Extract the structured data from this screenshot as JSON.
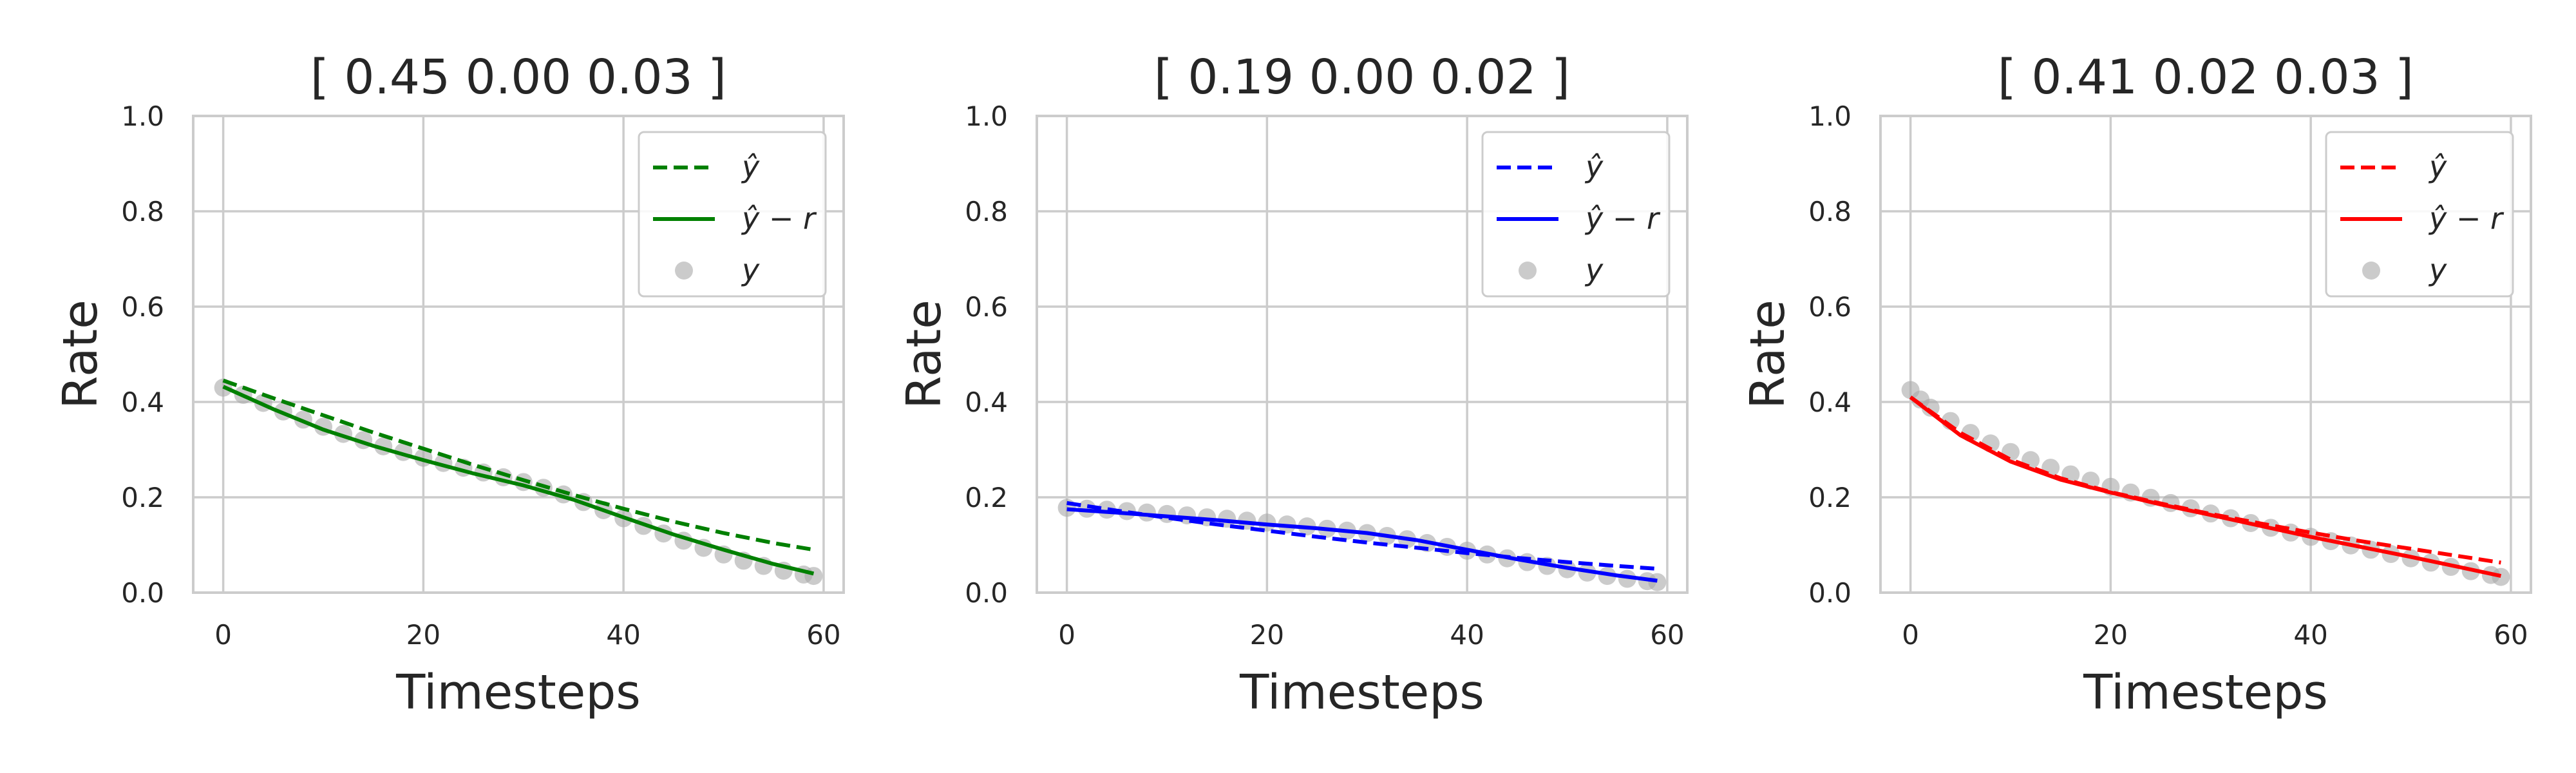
{
  "chart_data": [
    {
      "type": "line",
      "title": "[ 0.45 0.00 0.03 ]",
      "xlabel": "Timesteps",
      "ylabel": "Rate",
      "xlim": [
        -3,
        62
      ],
      "ylim": [
        0,
        1
      ],
      "xticks": [
        0,
        20,
        40,
        60
      ],
      "yticks": [
        0.0,
        0.2,
        0.4,
        0.6,
        0.8,
        1.0
      ],
      "grid": true,
      "legend": "top-right",
      "color": "#008000",
      "series": [
        {
          "name": "ŷ",
          "style": "dashed",
          "x": [
            0,
            5,
            10,
            15,
            20,
            25,
            30,
            35,
            40,
            45,
            50,
            55,
            59
          ],
          "values": [
            0.445,
            0.408,
            0.372,
            0.336,
            0.302,
            0.268,
            0.236,
            0.205,
            0.176,
            0.149,
            0.125,
            0.104,
            0.09
          ]
        },
        {
          "name": "ŷ − r",
          "style": "solid",
          "x": [
            0,
            5,
            10,
            15,
            20,
            25,
            30,
            35,
            40,
            45,
            50,
            55,
            59
          ],
          "values": [
            0.432,
            0.385,
            0.342,
            0.308,
            0.278,
            0.25,
            0.225,
            0.195,
            0.158,
            0.122,
            0.09,
            0.06,
            0.04
          ]
        },
        {
          "name": "y",
          "style": "markers",
          "x": [
            0,
            2,
            4,
            6,
            8,
            10,
            12,
            14,
            16,
            18,
            20,
            22,
            24,
            26,
            28,
            30,
            32,
            34,
            36,
            38,
            40,
            42,
            44,
            46,
            48,
            50,
            52,
            54,
            56,
            58,
            59
          ],
          "values": [
            0.43,
            0.415,
            0.398,
            0.38,
            0.363,
            0.348,
            0.333,
            0.32,
            0.307,
            0.295,
            0.283,
            0.272,
            0.262,
            0.252,
            0.242,
            0.232,
            0.22,
            0.206,
            0.19,
            0.173,
            0.156,
            0.14,
            0.124,
            0.109,
            0.094,
            0.08,
            0.067,
            0.056,
            0.046,
            0.038,
            0.035
          ]
        }
      ]
    },
    {
      "type": "line",
      "title": "[ 0.19 0.00 0.02 ]",
      "xlabel": "Timesteps",
      "ylabel": "Rate",
      "xlim": [
        -3,
        62
      ],
      "ylim": [
        0,
        1
      ],
      "xticks": [
        0,
        20,
        40,
        60
      ],
      "yticks": [
        0.0,
        0.2,
        0.4,
        0.6,
        0.8,
        1.0
      ],
      "grid": true,
      "legend": "top-right",
      "color": "#0000ff",
      "series": [
        {
          "name": "ŷ",
          "style": "dashed",
          "x": [
            0,
            5,
            10,
            15,
            20,
            25,
            30,
            35,
            40,
            45,
            50,
            55,
            59
          ],
          "values": [
            0.188,
            0.172,
            0.157,
            0.143,
            0.13,
            0.117,
            0.105,
            0.094,
            0.083,
            0.073,
            0.064,
            0.056,
            0.05
          ]
        },
        {
          "name": "ŷ − r",
          "style": "solid",
          "x": [
            0,
            5,
            10,
            15,
            20,
            25,
            30,
            35,
            40,
            45,
            50,
            55,
            59
          ],
          "values": [
            0.175,
            0.168,
            0.16,
            0.152,
            0.143,
            0.135,
            0.125,
            0.11,
            0.09,
            0.07,
            0.052,
            0.036,
            0.025
          ]
        },
        {
          "name": "y",
          "style": "markers",
          "x": [
            0,
            2,
            4,
            6,
            8,
            10,
            12,
            14,
            16,
            18,
            20,
            22,
            24,
            26,
            28,
            30,
            32,
            34,
            36,
            38,
            40,
            42,
            44,
            46,
            48,
            50,
            52,
            54,
            56,
            58,
            59
          ],
          "values": [
            0.178,
            0.176,
            0.174,
            0.171,
            0.168,
            0.165,
            0.162,
            0.158,
            0.155,
            0.151,
            0.147,
            0.143,
            0.139,
            0.134,
            0.13,
            0.125,
            0.119,
            0.112,
            0.104,
            0.096,
            0.088,
            0.08,
            0.072,
            0.064,
            0.056,
            0.049,
            0.042,
            0.035,
            0.029,
            0.024,
            0.022
          ]
        }
      ]
    },
    {
      "type": "line",
      "title": "[ 0.41 0.02 0.03 ]",
      "xlabel": "Timesteps",
      "ylabel": "Rate",
      "xlim": [
        -3,
        62
      ],
      "ylim": [
        0,
        1
      ],
      "xticks": [
        0,
        20,
        40,
        60
      ],
      "yticks": [
        0.0,
        0.2,
        0.4,
        0.6,
        0.8,
        1.0
      ],
      "grid": true,
      "legend": "top-right",
      "color": "#ff0000",
      "series": [
        {
          "name": "ŷ",
          "style": "dashed",
          "x": [
            0,
            5,
            10,
            15,
            20,
            25,
            30,
            35,
            40,
            45,
            50,
            55,
            59
          ],
          "values": [
            0.41,
            0.335,
            0.279,
            0.24,
            0.211,
            0.187,
            0.165,
            0.145,
            0.126,
            0.108,
            0.092,
            0.076,
            0.063
          ]
        },
        {
          "name": "ŷ − r",
          "style": "solid",
          "x": [
            0,
            5,
            10,
            15,
            20,
            25,
            30,
            35,
            40,
            45,
            50,
            55,
            59
          ],
          "values": [
            0.41,
            0.33,
            0.275,
            0.237,
            0.21,
            0.185,
            0.163,
            0.14,
            0.117,
            0.096,
            0.075,
            0.053,
            0.035
          ]
        },
        {
          "name": "y",
          "style": "markers",
          "x": [
            0,
            1,
            2,
            4,
            6,
            8,
            10,
            12,
            14,
            16,
            18,
            20,
            22,
            24,
            26,
            28,
            30,
            32,
            34,
            36,
            38,
            40,
            42,
            44,
            46,
            48,
            50,
            52,
            54,
            56,
            58,
            59
          ],
          "values": [
            0.425,
            0.405,
            0.388,
            0.36,
            0.335,
            0.313,
            0.295,
            0.278,
            0.262,
            0.248,
            0.235,
            0.222,
            0.21,
            0.199,
            0.188,
            0.177,
            0.166,
            0.156,
            0.146,
            0.136,
            0.126,
            0.117,
            0.108,
            0.099,
            0.09,
            0.081,
            0.072,
            0.063,
            0.054,
            0.045,
            0.037,
            0.033
          ]
        }
      ]
    }
  ]
}
